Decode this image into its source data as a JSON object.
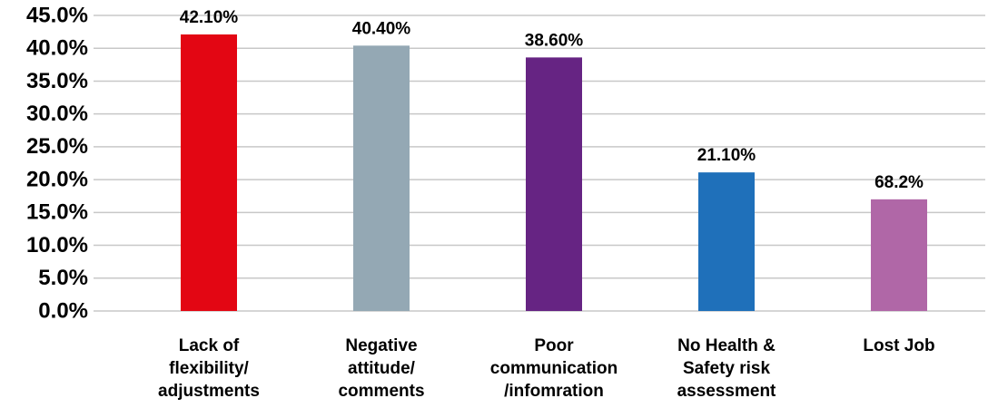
{
  "chart_data": {
    "type": "bar",
    "categories": [
      "Lack of flexibility/ adjustments",
      "Negative attitude/ comments",
      "Poor communication /infomration",
      "No Health & Safety risk assessment",
      "Lost Job"
    ],
    "values": [
      42.1,
      40.4,
      38.6,
      21.1,
      17.0
    ],
    "value_labels": [
      "42.10%",
      "40.40%",
      "38.60%",
      "21.10%",
      null
    ],
    "annotations": [
      "68.2%"
    ],
    "colors": [
      "#e30613",
      "#94a8b4",
      "#662483",
      "#1f70ba",
      "#b067a7"
    ],
    "ylim": [
      0,
      45
    ],
    "yticks": [
      {
        "value": 0,
        "label": "0.0%"
      },
      {
        "value": 5,
        "label": "5.0%"
      },
      {
        "value": 10,
        "label": "10.0%"
      },
      {
        "value": 15,
        "label": "15.0%"
      },
      {
        "value": 20,
        "label": "20.0%"
      },
      {
        "value": 25,
        "label": "25.0%"
      },
      {
        "value": 30,
        "label": "30.0%"
      },
      {
        "value": 35,
        "label": "35.0%"
      },
      {
        "value": 40,
        "label": "40.0%"
      },
      {
        "value": 45,
        "label": "45.0%"
      }
    ],
    "grid": true
  }
}
